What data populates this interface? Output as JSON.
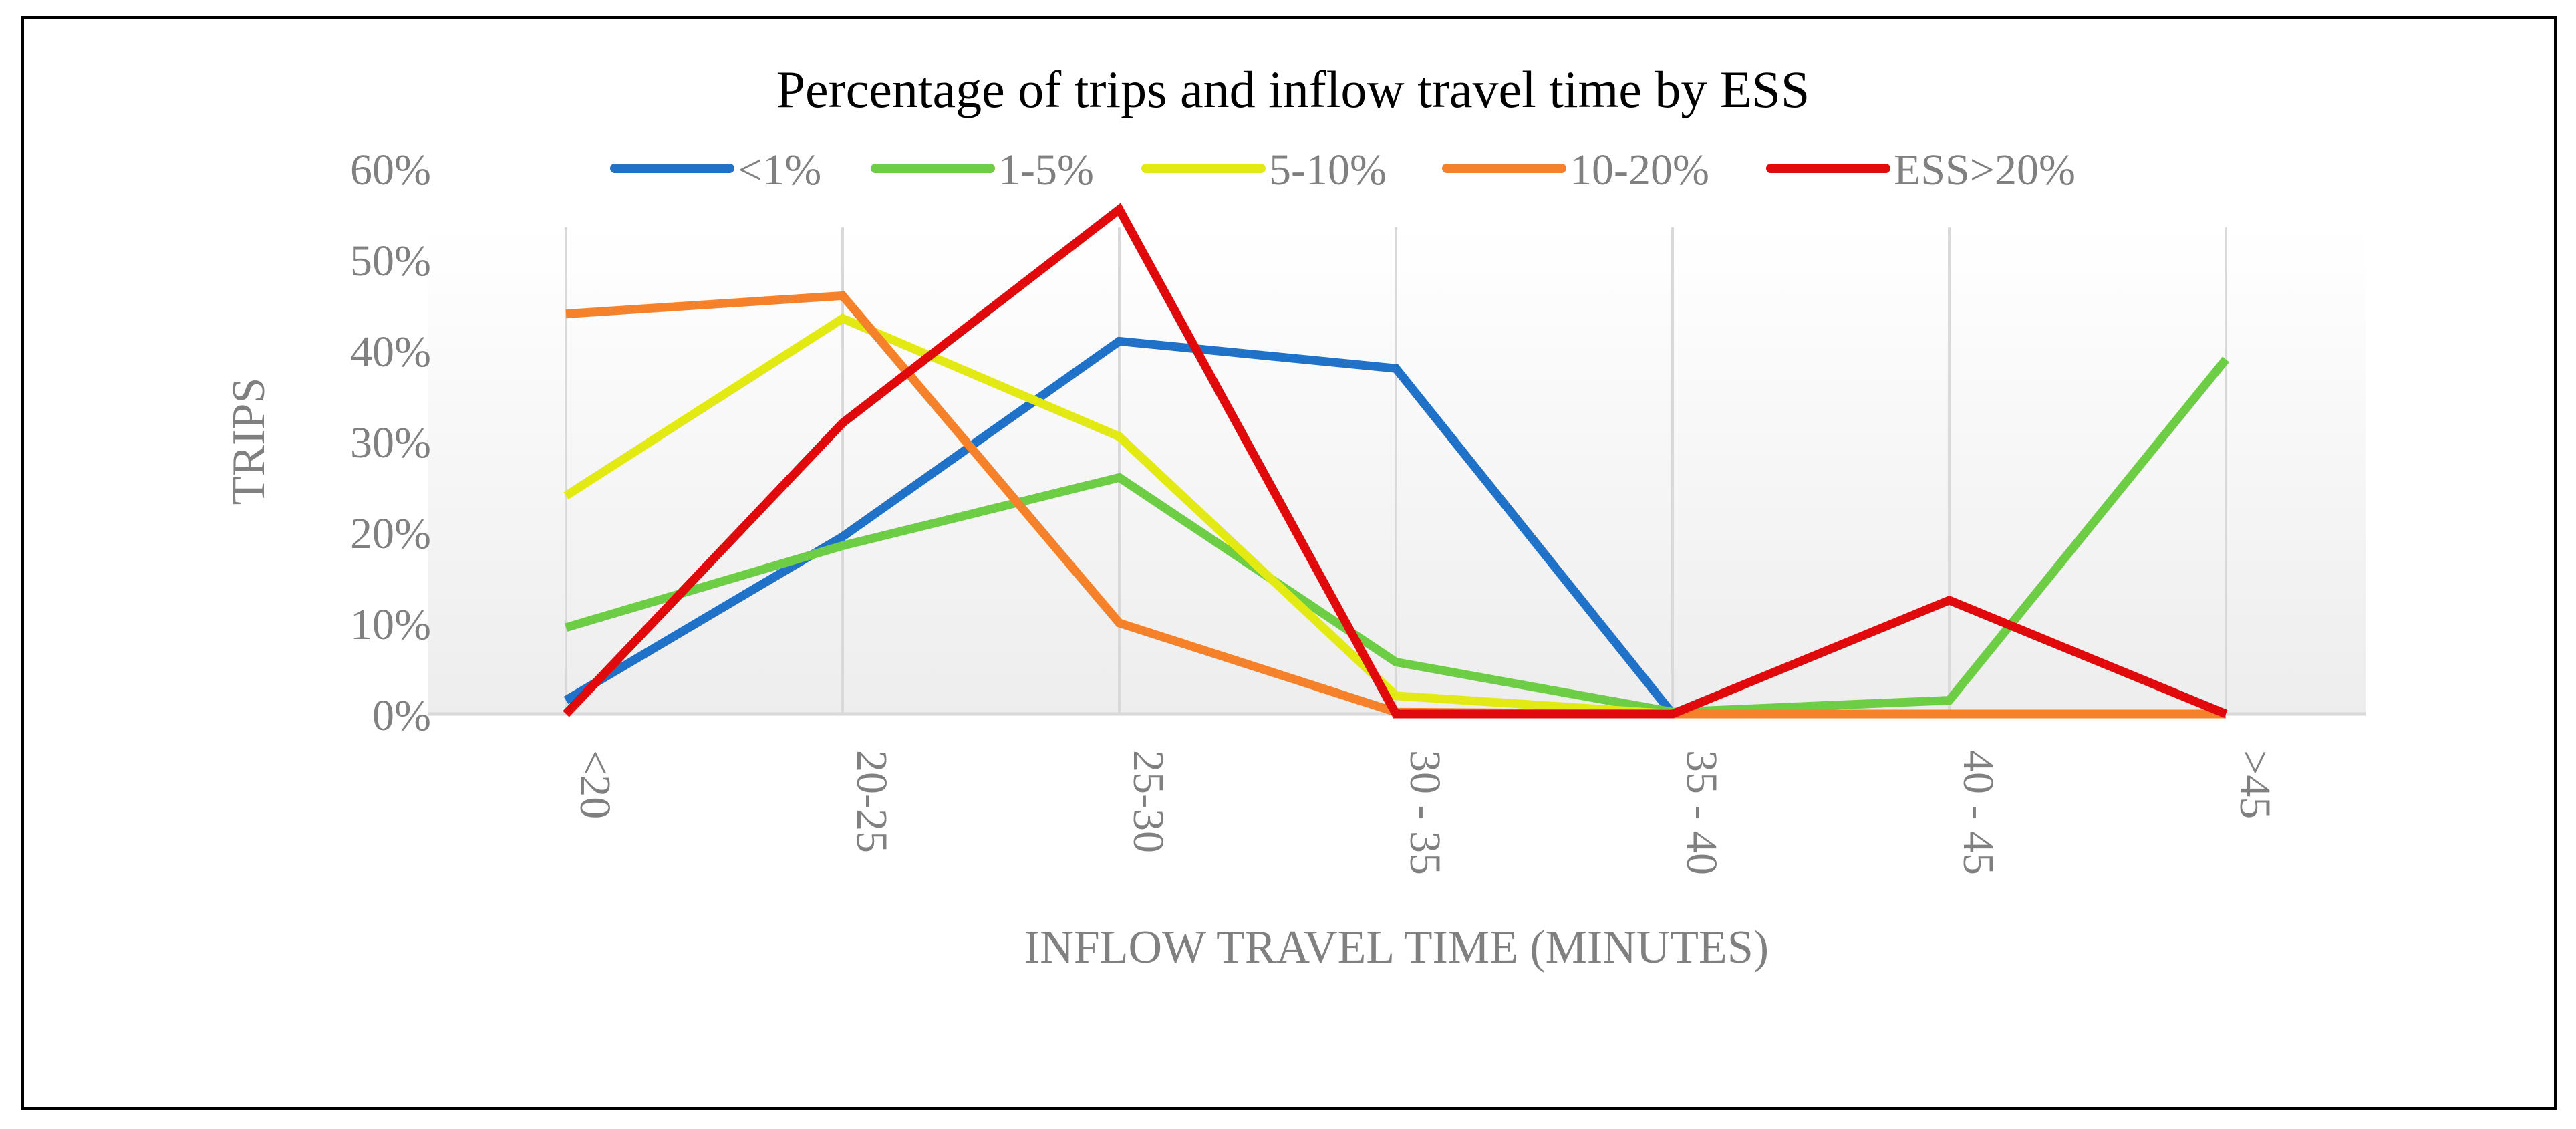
{
  "chart_data": {
    "type": "line",
    "title": "Percentage of trips and inflow travel time by ESS",
    "xlabel": "INFLOW TRAVEL TIME (MINUTES)",
    "ylabel": "TRIPS",
    "categories": [
      "<20",
      "20-25",
      "25-30",
      "30 - 35",
      "35 - 40",
      "40 - 45",
      ">45"
    ],
    "ylim": [
      0,
      60
    ],
    "yticks": [
      0,
      10,
      20,
      30,
      40,
      50,
      60
    ],
    "ytick_labels": [
      "0%",
      "10%",
      "20%",
      "30%",
      "40%",
      "50%",
      "60%"
    ],
    "legend_position": "top",
    "grid": "vertical",
    "series": [
      {
        "name": "<1%",
        "color": "#1f72c8",
        "values": [
          1.5,
          19.5,
          41,
          38,
          0,
          null,
          null
        ]
      },
      {
        "name": "1-5%",
        "color": "#6dcd44",
        "values": [
          9.5,
          18.5,
          26,
          5.7,
          0.2,
          1.5,
          39
        ]
      },
      {
        "name": "5-10%",
        "color": "#e3ea13",
        "values": [
          24,
          43.5,
          30.5,
          2,
          0,
          null,
          null
        ]
      },
      {
        "name": "10-20%",
        "color": "#f5822a",
        "values": [
          44,
          46,
          10,
          0.2,
          0,
          0,
          0
        ]
      },
      {
        "name": "ESS>20%",
        "color": "#e0090b",
        "values": [
          0,
          32,
          55.5,
          0,
          0,
          12.5,
          0
        ]
      }
    ]
  }
}
